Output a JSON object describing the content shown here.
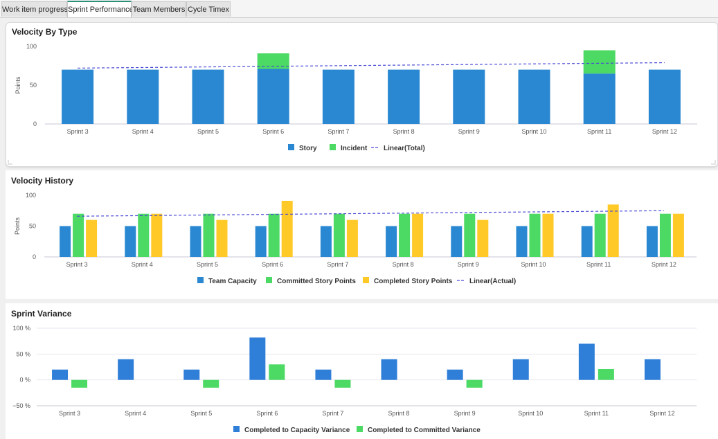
{
  "tabs": [
    {
      "label": "Work item progress",
      "active": false
    },
    {
      "label": "Sprint Performance",
      "active": true
    },
    {
      "label": "Team Members",
      "active": false
    },
    {
      "label": "Cycle Timex",
      "active": false
    }
  ],
  "colors": {
    "blue": "#2a88d2",
    "green": "#4cd964",
    "yellow": "#ffc928",
    "trend": "#4a4ad6",
    "variance_blue": "#2f7fd9",
    "variance_green": "#4cd964"
  },
  "chart_data": [
    {
      "type": "bar",
      "stacked": true,
      "title": "Velocity By Type",
      "ylabel": "Points",
      "ylim": [
        0,
        100
      ],
      "yticks": [
        "0",
        "50",
        "100"
      ],
      "categories": [
        "Sprint 3",
        "Sprint 4",
        "Sprint 5",
        "Sprint 6",
        "Sprint 7",
        "Sprint 8",
        "Sprint 9",
        "Sprint 10",
        "Sprint 11",
        "Sprint 12"
      ],
      "series": [
        {
          "name": "Story",
          "values": [
            70,
            70,
            70,
            71,
            70,
            70,
            70,
            70,
            65,
            70
          ]
        },
        {
          "name": "Incident",
          "values": [
            0,
            0,
            0,
            20,
            0,
            0,
            0,
            0,
            30,
            0
          ]
        }
      ],
      "trendline": {
        "name": "Linear(Total)",
        "start": 72,
        "end": 79
      },
      "legend": "bottom"
    },
    {
      "type": "bar",
      "title": "Velocity History",
      "ylabel": "Points",
      "ylim": [
        0,
        100
      ],
      "yticks": [
        "0",
        "50",
        "100"
      ],
      "categories": [
        "Sprint 3",
        "Sprint 4",
        "Sprint 5",
        "Sprint 6",
        "Sprint 7",
        "Sprint 8",
        "Sprint 9",
        "Sprint 10",
        "Sprint 11",
        "Sprint 12"
      ],
      "series": [
        {
          "name": "Team Capacity",
          "values": [
            50,
            50,
            50,
            50,
            50,
            50,
            50,
            50,
            50,
            50
          ]
        },
        {
          "name": "Committed Story Points",
          "values": [
            70,
            70,
            70,
            70,
            70,
            70,
            70,
            70,
            70,
            70
          ]
        },
        {
          "name": "Completed Story Points",
          "values": [
            60,
            70,
            60,
            91,
            60,
            70,
            60,
            70,
            85,
            70
          ]
        }
      ],
      "trendline": {
        "name": "Linear(Actual)",
        "start": 66,
        "end": 75
      },
      "legend": "bottom"
    },
    {
      "type": "bar",
      "title": "Sprint Variance",
      "ylabel": "",
      "ylim": [
        -50,
        100
      ],
      "yticks": [
        "−50 %",
        "0 %",
        "50 %",
        "100 %"
      ],
      "categories": [
        "Sprint 3",
        "Sprint 4",
        "Sprint 5",
        "Sprint 6",
        "Sprint 7",
        "Sprint 8",
        "Sprint 9",
        "Sprint 10",
        "Sprint 11",
        "Sprint 12"
      ],
      "series": [
        {
          "name": "Completed to Capacity Variance",
          "values": [
            20,
            40,
            20,
            82,
            20,
            40,
            20,
            40,
            70,
            40
          ]
        },
        {
          "name": "Completed to Committed Variance",
          "values": [
            -15,
            0,
            -15,
            30,
            -15,
            0,
            -15,
            0,
            21,
            0
          ]
        }
      ],
      "legend": "bottom"
    }
  ]
}
